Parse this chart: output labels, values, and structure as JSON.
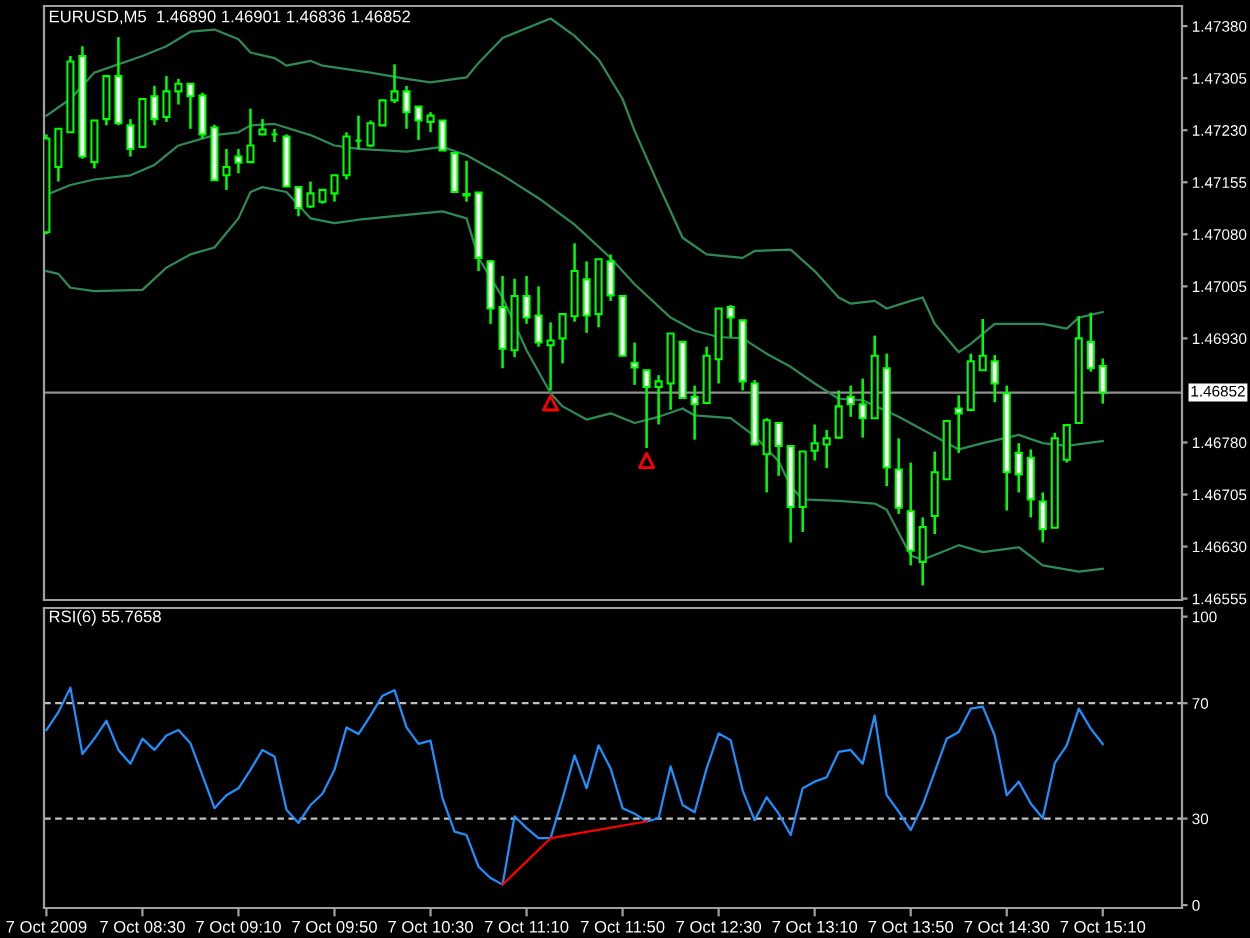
{
  "chart_data": [
    {
      "type": "candlestick",
      "title": "EURUSD,M5  1.46890 1.46901 1.46836 1.46852",
      "x": [
        "2009-10-07T07:50",
        "2009-10-07T07:55",
        "2009-10-07T08:00",
        "2009-10-07T08:05",
        "2009-10-07T08:10",
        "2009-10-07T08:15",
        "2009-10-07T08:20",
        "2009-10-07T08:25",
        "2009-10-07T08:30",
        "2009-10-07T08:35",
        "2009-10-07T08:40",
        "2009-10-07T08:45",
        "2009-10-07T08:50",
        "2009-10-07T08:55",
        "2009-10-07T09:00",
        "2009-10-07T09:05",
        "2009-10-07T09:10",
        "2009-10-07T09:15",
        "2009-10-07T09:20",
        "2009-10-07T09:25",
        "2009-10-07T09:30",
        "2009-10-07T09:35",
        "2009-10-07T09:40",
        "2009-10-07T09:45",
        "2009-10-07T09:50",
        "2009-10-07T09:55",
        "2009-10-07T10:00",
        "2009-10-07T10:05",
        "2009-10-07T10:10",
        "2009-10-07T10:15",
        "2009-10-07T10:20",
        "2009-10-07T10:25",
        "2009-10-07T10:30",
        "2009-10-07T10:35",
        "2009-10-07T10:40",
        "2009-10-07T10:45",
        "2009-10-07T10:50",
        "2009-10-07T10:55",
        "2009-10-07T11:00",
        "2009-10-07T11:05",
        "2009-10-07T11:10",
        "2009-10-07T11:15",
        "2009-10-07T11:20",
        "2009-10-07T11:25",
        "2009-10-07T11:30",
        "2009-10-07T11:35",
        "2009-10-07T11:40",
        "2009-10-07T11:45",
        "2009-10-07T11:50",
        "2009-10-07T11:55",
        "2009-10-07T12:00",
        "2009-10-07T12:05",
        "2009-10-07T12:10",
        "2009-10-07T12:15",
        "2009-10-07T12:20",
        "2009-10-07T12:25",
        "2009-10-07T12:30",
        "2009-10-07T12:35",
        "2009-10-07T12:40",
        "2009-10-07T12:45",
        "2009-10-07T12:50",
        "2009-10-07T12:55",
        "2009-10-07T13:00",
        "2009-10-07T13:05",
        "2009-10-07T13:10",
        "2009-10-07T13:15",
        "2009-10-07T13:20",
        "2009-10-07T13:25",
        "2009-10-07T13:30",
        "2009-10-07T13:35",
        "2009-10-07T13:40",
        "2009-10-07T13:45",
        "2009-10-07T13:50",
        "2009-10-07T13:55",
        "2009-10-07T14:00",
        "2009-10-07T14:05",
        "2009-10-07T14:10",
        "2009-10-07T14:15",
        "2009-10-07T14:20",
        "2009-10-07T14:25",
        "2009-10-07T14:30",
        "2009-10-07T14:35",
        "2009-10-07T14:40",
        "2009-10-07T14:45",
        "2009-10-07T14:50",
        "2009-10-07T14:55",
        "2009-10-07T15:00",
        "2009-10-07T15:05",
        "2009-10-07T15:10"
      ],
      "ohlc": [
        [
          1.47083,
          1.47224,
          1.4708,
          1.47218
        ],
        [
          1.47177,
          1.47232,
          1.47156,
          1.47232
        ],
        [
          1.47227,
          1.47337,
          1.47226,
          1.47329
        ],
        [
          1.47337,
          1.47351,
          1.47189,
          1.47192
        ],
        [
          1.47184,
          1.47244,
          1.47175,
          1.47244
        ],
        [
          1.47246,
          1.47308,
          1.47237,
          1.47308
        ],
        [
          1.47308,
          1.47364,
          1.47237,
          1.4724
        ],
        [
          1.47237,
          1.47246,
          1.47192,
          1.47203
        ],
        [
          1.47206,
          1.47275,
          1.47206,
          1.47275
        ],
        [
          1.47279,
          1.47294,
          1.47237,
          1.47246
        ],
        [
          1.47249,
          1.47308,
          1.47242,
          1.47286
        ],
        [
          1.47286,
          1.47304,
          1.47267,
          1.47297
        ],
        [
          1.47297,
          1.47297,
          1.47232,
          1.47279
        ],
        [
          1.4728,
          1.47284,
          1.47218,
          1.47224
        ],
        [
          1.47234,
          1.47238,
          1.47158,
          1.47158
        ],
        [
          1.47165,
          1.47203,
          1.47144,
          1.47177
        ],
        [
          1.47192,
          1.47203,
          1.47168,
          1.47183
        ],
        [
          1.47184,
          1.47261,
          1.47183,
          1.47208
        ],
        [
          1.47224,
          1.47246,
          1.47224,
          1.47231
        ],
        [
          1.47224,
          1.47232,
          1.47213,
          1.47224
        ],
        [
          1.47221,
          1.47224,
          1.47149,
          1.47149
        ],
        [
          1.47148,
          1.47148,
          1.47106,
          1.47118
        ],
        [
          1.4712,
          1.47156,
          1.47118,
          1.47139
        ],
        [
          1.47127,
          1.47144,
          1.47124,
          1.47144
        ],
        [
          1.47139,
          1.47165,
          1.47127,
          1.47165
        ],
        [
          1.47165,
          1.47227,
          1.47159,
          1.47221
        ],
        [
          1.47215,
          1.47251,
          1.47203,
          1.47215
        ],
        [
          1.47208,
          1.47244,
          1.47206,
          1.4724
        ],
        [
          1.47237,
          1.47273,
          1.47237,
          1.47273
        ],
        [
          1.47273,
          1.47325,
          1.47269,
          1.47286
        ],
        [
          1.47286,
          1.47294,
          1.47232,
          1.47256
        ],
        [
          1.47264,
          1.47264,
          1.47216,
          1.47244
        ],
        [
          1.47242,
          1.47256,
          1.47227,
          1.47251
        ],
        [
          1.47244,
          1.47244,
          1.47201,
          1.47201
        ],
        [
          1.47197,
          1.47197,
          1.47141,
          1.47141
        ],
        [
          1.47136,
          1.47186,
          1.47127,
          1.47138
        ],
        [
          1.4714,
          1.4714,
          1.47027,
          1.47046
        ],
        [
          1.47041,
          1.47043,
          1.46951,
          1.46973
        ],
        [
          1.46975,
          1.4702,
          1.46887,
          1.46915
        ],
        [
          1.46913,
          1.47016,
          1.46903,
          1.46991
        ],
        [
          1.46991,
          1.4702,
          1.46951,
          1.4696
        ],
        [
          1.46963,
          1.47005,
          1.46918,
          1.46924
        ],
        [
          1.4692,
          1.46953,
          1.46855,
          1.46927
        ],
        [
          1.4693,
          1.46965,
          1.46894,
          1.46965
        ],
        [
          1.46962,
          1.47067,
          1.46954,
          1.47027
        ],
        [
          1.47015,
          1.47041,
          1.46938,
          1.46963
        ],
        [
          1.46965,
          1.47044,
          1.46946,
          1.47044
        ],
        [
          1.47041,
          1.47051,
          1.46984,
          1.46992
        ],
        [
          1.46991,
          1.46991,
          1.46905,
          1.46905
        ],
        [
          1.46895,
          1.46924,
          1.46863,
          1.46888
        ],
        [
          1.46884,
          1.46884,
          1.46772,
          1.4686
        ],
        [
          1.4686,
          1.46877,
          1.46806,
          1.46868
        ],
        [
          1.46865,
          1.46937,
          1.46827,
          1.46937
        ],
        [
          1.46925,
          1.46925,
          1.46843,
          1.46844
        ],
        [
          1.46846,
          1.46862,
          1.46784,
          1.46835
        ],
        [
          1.46837,
          1.46918,
          1.46835,
          1.46905
        ],
        [
          1.469,
          1.46973,
          1.46865,
          1.46973
        ],
        [
          1.46975,
          1.46978,
          1.46932,
          1.4696
        ],
        [
          1.46956,
          1.46956,
          1.46855,
          1.46868
        ],
        [
          1.46865,
          1.4687,
          1.46777,
          1.46777
        ],
        [
          1.46763,
          1.46815,
          1.46708,
          1.46812
        ],
        [
          1.46808,
          1.46808,
          1.46732,
          1.46775
        ],
        [
          1.46775,
          1.46775,
          1.46636,
          1.46687
        ],
        [
          1.46687,
          1.46767,
          1.46651,
          1.46767
        ],
        [
          1.46768,
          1.46806,
          1.46754,
          1.46779
        ],
        [
          1.46777,
          1.46798,
          1.46743,
          1.46786
        ],
        [
          1.46787,
          1.46855,
          1.46786,
          1.46832
        ],
        [
          1.46846,
          1.46862,
          1.46817,
          1.46835
        ],
        [
          1.46835,
          1.46872,
          1.46787,
          1.46815
        ],
        [
          1.46815,
          1.46934,
          1.46815,
          1.46905
        ],
        [
          1.46887,
          1.46908,
          1.46717,
          1.46744
        ],
        [
          1.46741,
          1.46786,
          1.46677,
          1.46686
        ],
        [
          1.46681,
          1.46751,
          1.46603,
          1.46624
        ],
        [
          1.46608,
          1.46672,
          1.46574,
          1.46658
        ],
        [
          1.46674,
          1.46767,
          1.46648,
          1.46737
        ],
        [
          1.46727,
          1.46811,
          1.46727,
          1.46811
        ],
        [
          1.46829,
          1.46848,
          1.46765,
          1.46822
        ],
        [
          1.46827,
          1.46908,
          1.46825,
          1.46897
        ],
        [
          1.46884,
          1.46958,
          1.46884,
          1.46905
        ],
        [
          1.46897,
          1.46906,
          1.46838,
          1.46865
        ],
        [
          1.46851,
          1.46862,
          1.46682,
          1.46737
        ],
        [
          1.46765,
          1.46779,
          1.46708,
          1.46734
        ],
        [
          1.46758,
          1.4677,
          1.46672,
          1.46698
        ],
        [
          1.46695,
          1.46708,
          1.46636,
          1.46655
        ],
        [
          1.46657,
          1.46794,
          1.46657,
          1.46786
        ],
        [
          1.46755,
          1.46805,
          1.46751,
          1.46805
        ],
        [
          1.46808,
          1.46962,
          1.46808,
          1.4693
        ],
        [
          1.46925,
          1.46967,
          1.46882,
          1.46887
        ],
        [
          1.4689,
          1.46901,
          1.46836,
          1.46852
        ]
      ],
      "series": [
        {
          "type": "line",
          "color": "#2e8b57",
          "x": [
            "2009-10-07T07:50",
            "2009-10-07T08:00",
            "2009-10-07T08:10",
            "2009-10-07T08:30",
            "2009-10-07T08:40",
            "2009-10-07T08:50",
            "2009-10-07T09:00",
            "2009-10-07T09:10",
            "2009-10-07T09:15",
            "2009-10-07T09:25",
            "2009-10-07T09:30",
            "2009-10-07T09:40",
            "2009-10-07T09:45",
            "2009-10-07T09:55",
            "2009-10-07T10:05",
            "2009-10-07T10:20",
            "2009-10-07T10:30",
            "2009-10-07T10:45",
            "2009-10-07T10:50",
            "2009-10-07T11:00",
            "2009-10-07T11:20",
            "2009-10-07T11:30",
            "2009-10-07T11:40",
            "2009-10-07T11:50",
            "2009-10-07T11:55",
            "2009-10-07T12:05",
            "2009-10-07T12:15",
            "2009-10-07T12:25",
            "2009-10-07T12:40",
            "2009-10-07T12:45",
            "2009-10-07T13:00",
            "2009-10-07T13:10",
            "2009-10-07T13:20",
            "2009-10-07T13:25",
            "2009-10-07T13:35",
            "2009-10-07T13:40",
            "2009-10-07T13:50",
            "2009-10-07T13:55",
            "2009-10-07T14:00",
            "2009-10-07T14:10",
            "2009-10-07T14:15",
            "2009-10-07T14:25",
            "2009-10-07T14:45",
            "2009-10-07T14:55",
            "2009-10-07T15:00",
            "2009-10-07T15:10"
          ],
          "values": [
            1.47251,
            1.47275,
            1.47313,
            1.47337,
            1.47351,
            1.47372,
            1.47375,
            1.47361,
            1.47342,
            1.47334,
            1.47323,
            1.4733,
            1.47323,
            1.47318,
            1.47313,
            1.47304,
            1.47299,
            1.47306,
            1.47327,
            1.47363,
            1.47391,
            1.47366,
            1.47332,
            1.47275,
            1.47229,
            1.47151,
            1.47075,
            1.47051,
            1.47046,
            1.47056,
            1.47058,
            1.47027,
            1.46989,
            1.4698,
            1.46984,
            1.46973,
            1.46984,
            1.46989,
            1.46951,
            1.4691,
            1.46922,
            1.46951,
            1.46951,
            1.46944,
            1.4696,
            1.46968
          ]
        },
        {
          "type": "line",
          "color": "#2e8b57",
          "x": [
            "2009-10-07T07:50",
            "2009-10-07T08:00",
            "2009-10-07T08:10",
            "2009-10-07T08:25",
            "2009-10-07T08:35",
            "2009-10-07T08:45",
            "2009-10-07T09:00",
            "2009-10-07T09:10",
            "2009-10-07T09:15",
            "2009-10-07T09:25",
            "2009-10-07T09:40",
            "2009-10-07T09:50",
            "2009-10-07T10:00",
            "2009-10-07T10:20",
            "2009-10-07T10:35",
            "2009-10-07T10:45",
            "2009-10-07T11:00",
            "2009-10-07T11:15",
            "2009-10-07T11:30",
            "2009-10-07T11:45",
            "2009-10-07T11:55",
            "2009-10-07T12:10",
            "2009-10-07T12:20",
            "2009-10-07T12:30",
            "2009-10-07T12:40",
            "2009-10-07T12:50",
            "2009-10-07T13:00",
            "2009-10-07T13:10",
            "2009-10-07T13:20",
            "2009-10-07T13:30",
            "2009-10-07T13:45",
            "2009-10-07T14:00",
            "2009-10-07T14:10",
            "2009-10-07T14:20",
            "2009-10-07T14:35",
            "2009-10-07T14:45",
            "2009-10-07T14:55",
            "2009-10-07T15:10"
          ],
          "values": [
            1.47137,
            1.47151,
            1.47159,
            1.47165,
            1.4718,
            1.47208,
            1.47223,
            1.47227,
            1.47237,
            1.47239,
            1.47223,
            1.47208,
            1.47203,
            1.47199,
            1.47206,
            1.47194,
            1.47165,
            1.47132,
            1.47094,
            1.47046,
            1.47008,
            1.4696,
            1.46941,
            1.46932,
            1.4693,
            1.46908,
            1.46889,
            1.46865,
            1.46843,
            1.46841,
            1.46817,
            1.46789,
            1.4677,
            1.46779,
            1.46791,
            1.46779,
            1.46775,
            1.46782
          ]
        },
        {
          "type": "line",
          "color": "#2e8b57",
          "x": [
            "2009-10-07T07:50",
            "2009-10-07T07:55",
            "2009-10-07T08:00",
            "2009-10-07T08:10",
            "2009-10-07T08:30",
            "2009-10-07T08:40",
            "2009-10-07T08:50",
            "2009-10-07T09:00",
            "2009-10-07T09:10",
            "2009-10-07T09:15",
            "2009-10-07T09:20",
            "2009-10-07T09:30",
            "2009-10-07T09:40",
            "2009-10-07T09:50",
            "2009-10-07T10:00",
            "2009-10-07T10:20",
            "2009-10-07T10:35",
            "2009-10-07T10:45",
            "2009-10-07T10:50",
            "2009-10-07T11:00",
            "2009-10-07T11:10",
            "2009-10-07T11:20",
            "2009-10-07T11:25",
            "2009-10-07T11:35",
            "2009-10-07T11:45",
            "2009-10-07T11:55",
            "2009-10-07T12:05",
            "2009-10-07T12:15",
            "2009-10-07T12:20",
            "2009-10-07T12:35",
            "2009-10-07T12:45",
            "2009-10-07T12:55",
            "2009-10-07T13:00",
            "2009-10-07T13:05",
            "2009-10-07T13:20",
            "2009-10-07T13:35",
            "2009-10-07T13:40",
            "2009-10-07T13:50",
            "2009-10-07T13:55",
            "2009-10-07T14:10",
            "2009-10-07T14:20",
            "2009-10-07T14:35",
            "2009-10-07T14:45",
            "2009-10-07T15:00",
            "2009-10-07T15:10"
          ],
          "values": [
            1.47027,
            1.47023,
            1.47003,
            1.46998,
            1.47,
            1.47032,
            1.47051,
            1.47061,
            1.47103,
            1.47141,
            1.47148,
            1.47141,
            1.47103,
            1.47096,
            1.47101,
            1.47108,
            1.47113,
            1.47103,
            1.47046,
            1.46989,
            1.46913,
            1.46851,
            1.46832,
            1.46813,
            1.46822,
            1.46808,
            1.46817,
            1.46829,
            1.46819,
            1.46815,
            1.46789,
            1.46753,
            1.46717,
            1.46698,
            1.46696,
            1.46692,
            1.46683,
            1.46617,
            1.46611,
            1.46632,
            1.46622,
            1.46629,
            1.46603,
            1.46594,
            1.46598
          ]
        },
        {
          "type": "scatter",
          "color": "#ff0000",
          "marker": "triangle",
          "x": [
            "2009-10-07T11:20",
            "2009-10-07T12:00"
          ],
          "values": [
            1.46837,
            1.46754
          ]
        }
      ],
      "xlim": [
        "2009-10-07T07:49",
        "2009-10-07T15:43"
      ],
      "ylim": [
        1.46553,
        1.47409
      ],
      "yticks": [
        {
          "value": 1.4738,
          "label": "1.47380"
        },
        {
          "value": 1.47305,
          "label": "1.47305"
        },
        {
          "value": 1.4723,
          "label": "1.47230"
        },
        {
          "value": 1.47155,
          "label": "1.47155"
        },
        {
          "value": 1.4708,
          "label": "1.47080"
        },
        {
          "value": 1.47005,
          "label": "1.47005"
        },
        {
          "value": 1.4693,
          "label": "1.46930"
        },
        {
          "value": 1.4678,
          "label": "1.46780"
        },
        {
          "value": 1.46705,
          "label": "1.46705"
        },
        {
          "value": 1.4663,
          "label": "1.46630"
        },
        {
          "value": 1.46555,
          "label": "1.46555"
        }
      ],
      "tick_labels": "y",
      "ref_lines": [
        {
          "axis": "y",
          "value": 1.46852,
          "label": "1.46852",
          "color": "#909090"
        }
      ]
    },
    {
      "type": "line",
      "title": "RSI(6) 55.7658",
      "x": [
        "2009-10-07T07:50",
        "2009-10-07T07:55",
        "2009-10-07T08:00",
        "2009-10-07T08:05",
        "2009-10-07T08:10",
        "2009-10-07T08:15",
        "2009-10-07T08:20",
        "2009-10-07T08:25",
        "2009-10-07T08:30",
        "2009-10-07T08:35",
        "2009-10-07T08:40",
        "2009-10-07T08:45",
        "2009-10-07T08:50",
        "2009-10-07T08:55",
        "2009-10-07T09:00",
        "2009-10-07T09:05",
        "2009-10-07T09:10",
        "2009-10-07T09:15",
        "2009-10-07T09:20",
        "2009-10-07T09:25",
        "2009-10-07T09:30",
        "2009-10-07T09:35",
        "2009-10-07T09:40",
        "2009-10-07T09:45",
        "2009-10-07T09:50",
        "2009-10-07T09:55",
        "2009-10-07T10:00",
        "2009-10-07T10:05",
        "2009-10-07T10:10",
        "2009-10-07T10:15",
        "2009-10-07T10:20",
        "2009-10-07T10:25",
        "2009-10-07T10:30",
        "2009-10-07T10:35",
        "2009-10-07T10:40",
        "2009-10-07T10:45",
        "2009-10-07T10:50",
        "2009-10-07T10:55",
        "2009-10-07T11:00",
        "2009-10-07T11:05",
        "2009-10-07T11:10",
        "2009-10-07T11:15",
        "2009-10-07T11:20",
        "2009-10-07T11:25",
        "2009-10-07T11:30",
        "2009-10-07T11:35",
        "2009-10-07T11:40",
        "2009-10-07T11:45",
        "2009-10-07T11:50",
        "2009-10-07T11:55",
        "2009-10-07T12:00",
        "2009-10-07T12:05",
        "2009-10-07T12:10",
        "2009-10-07T12:15",
        "2009-10-07T12:20",
        "2009-10-07T12:25",
        "2009-10-07T12:30",
        "2009-10-07T12:35",
        "2009-10-07T12:40",
        "2009-10-07T12:45",
        "2009-10-07T12:50",
        "2009-10-07T12:55",
        "2009-10-07T13:00",
        "2009-10-07T13:05",
        "2009-10-07T13:10",
        "2009-10-07T13:15",
        "2009-10-07T13:20",
        "2009-10-07T13:25",
        "2009-10-07T13:30",
        "2009-10-07T13:35",
        "2009-10-07T13:40",
        "2009-10-07T13:45",
        "2009-10-07T13:50",
        "2009-10-07T13:55",
        "2009-10-07T14:00",
        "2009-10-07T14:05",
        "2009-10-07T14:10",
        "2009-10-07T14:15",
        "2009-10-07T14:20",
        "2009-10-07T14:25",
        "2009-10-07T14:30",
        "2009-10-07T14:35",
        "2009-10-07T14:40",
        "2009-10-07T14:45",
        "2009-10-07T14:50",
        "2009-10-07T14:55",
        "2009-10-07T15:00",
        "2009-10-07T15:05",
        "2009-10-07T15:10"
      ],
      "series": [
        {
          "color": "#1e90ff",
          "values": [
            60.7,
            66.9,
            75.4,
            52.4,
            57.7,
            63.9,
            53.8,
            49.0,
            57.7,
            53.8,
            58.8,
            60.7,
            56.1,
            45.0,
            33.6,
            38.1,
            40.5,
            46.9,
            53.8,
            51.5,
            33.1,
            28.5,
            34.7,
            38.6,
            46.9,
            61.6,
            59.3,
            65.7,
            72.6,
            74.5,
            61.6,
            55.9,
            57.0,
            37.0,
            25.5,
            24.3,
            13.3,
            9.4,
            7.1,
            30.8,
            26.7,
            23.2,
            23.2,
            37.0,
            51.9,
            40.5,
            55.4,
            47.4,
            33.6,
            31.7,
            29.0,
            30.1,
            48.1,
            34.7,
            32.2,
            47.4,
            59.5,
            57.2,
            39.8,
            29.4,
            37.4,
            31.7,
            24.3,
            40.5,
            42.8,
            44.3,
            53.1,
            53.8,
            49.0,
            65.7,
            38.1,
            32.4,
            26.0,
            34.7,
            46.2,
            57.7,
            60.0,
            68.1,
            68.8,
            58.8,
            38.1,
            42.8,
            35.2,
            30.1,
            49.2,
            55.4,
            68.1,
            61.2,
            55.8
          ]
        },
        {
          "color": "#ff0000",
          "x": [
            "2009-10-07T11:00",
            "2009-10-07T11:20",
            "2009-10-07T12:00"
          ],
          "values": [
            7.1,
            23.2,
            29.0
          ]
        }
      ],
      "xlim": [
        "2009-10-07T07:49",
        "2009-10-07T15:43"
      ],
      "xticks": [
        {
          "value": "2009-10-07T07:50",
          "label": "7 Oct 2009"
        },
        {
          "value": "2009-10-07T08:30",
          "label": "7 Oct 08:30"
        },
        {
          "value": "2009-10-07T09:10",
          "label": "7 Oct 09:10"
        },
        {
          "value": "2009-10-07T09:50",
          "label": "7 Oct 09:50"
        },
        {
          "value": "2009-10-07T10:30",
          "label": "7 Oct 10:30"
        },
        {
          "value": "2009-10-07T11:10",
          "label": "7 Oct 11:10"
        },
        {
          "value": "2009-10-07T11:50",
          "label": "7 Oct 11:50"
        },
        {
          "value": "2009-10-07T12:30",
          "label": "7 Oct 12:30"
        },
        {
          "value": "2009-10-07T13:10",
          "label": "7 Oct 13:10"
        },
        {
          "value": "2009-10-07T13:50",
          "label": "7 Oct 13:50"
        },
        {
          "value": "2009-10-07T14:30",
          "label": "7 Oct 14:30"
        },
        {
          "value": "2009-10-07T15:10",
          "label": "7 Oct 15:10"
        }
      ],
      "ylim": [
        -1,
        103
      ],
      "yticks": [
        100,
        70,
        30,
        0
      ],
      "ref_lines": [
        {
          "axis": "y",
          "value": 70,
          "color": "#c0c0c0",
          "line_style": "dashed"
        },
        {
          "axis": "y",
          "value": 30,
          "color": "#c0c0c0",
          "line_style": "dashed"
        }
      ]
    }
  ]
}
